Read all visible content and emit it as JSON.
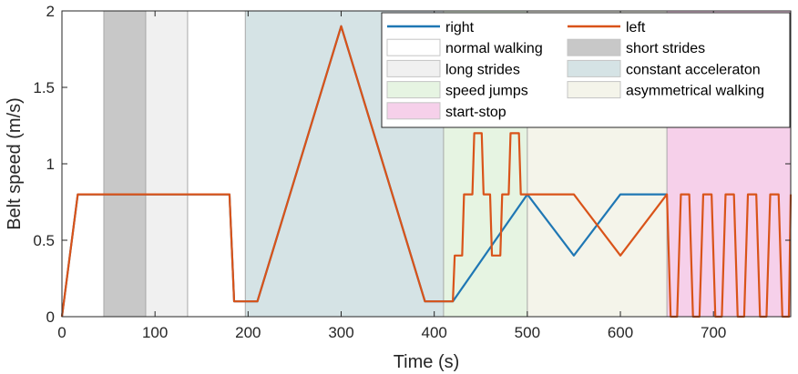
{
  "chart_data": {
    "type": "line",
    "xlabel": "Time (s)",
    "ylabel": "Belt speed (m/s)",
    "xlim": [
      0,
      783
    ],
    "ylim": [
      0,
      2
    ],
    "xticks": [
      0,
      100,
      200,
      300,
      400,
      500,
      600,
      700
    ],
    "yticks": [
      0,
      0.5,
      1,
      1.5,
      2
    ],
    "ytick_labels": [
      "0",
      "0.5",
      "1",
      "1.5",
      "2"
    ],
    "grid": false,
    "legend_position": "top-right",
    "phases": [
      {
        "name": "normal walking",
        "color": "#ffffff",
        "ranges": [
          [
            0,
            45
          ],
          [
            135,
            197
          ]
        ]
      },
      {
        "name": "short strides",
        "color": "#c8c8c8",
        "ranges": [
          [
            45,
            90
          ]
        ]
      },
      {
        "name": "long strides",
        "color": "#f0f0f0",
        "ranges": [
          [
            90,
            135
          ]
        ]
      },
      {
        "name": "constant acceleraton",
        "color": "#d5e3e5",
        "ranges": [
          [
            197,
            410
          ]
        ]
      },
      {
        "name": "speed jumps",
        "color": "#e6f4e2",
        "ranges": [
          [
            410,
            500
          ]
        ]
      },
      {
        "name": "asymmetrical walking",
        "color": "#f4f4ea",
        "ranges": [
          [
            500,
            650
          ]
        ]
      },
      {
        "name": "start-stop",
        "color": "#f6d0ea",
        "ranges": [
          [
            650,
            783
          ]
        ]
      }
    ],
    "series": [
      {
        "name": "right",
        "color": "#1f77b4",
        "x": [
          0,
          17,
          180,
          185,
          210,
          300,
          390,
          420,
          500,
          550,
          600,
          650
        ],
        "y": [
          0,
          0.8,
          0.8,
          0.1,
          0.1,
          1.9,
          0.1,
          0.1,
          0.8,
          0.4,
          0.8,
          0.8
        ]
      },
      {
        "name": "left",
        "color": "#d95319",
        "x": [
          0,
          17,
          180,
          185,
          210,
          300,
          390,
          420,
          422,
          430,
          432,
          441,
          443,
          451,
          453,
          460,
          462,
          471,
          473,
          480,
          482,
          491,
          493,
          500,
          550,
          600,
          650,
          654,
          661,
          665,
          674,
          678,
          685,
          689,
          698,
          702,
          709,
          713,
          722,
          726,
          733,
          737,
          746,
          750,
          757,
          761,
          770,
          774,
          781,
          783
        ],
        "y": [
          0,
          0.8,
          0.8,
          0.1,
          0.1,
          1.9,
          0.1,
          0.1,
          0.4,
          0.4,
          0.8,
          0.8,
          1.2,
          1.2,
          0.8,
          0.8,
          0.4,
          0.4,
          0.8,
          0.8,
          1.2,
          1.2,
          0.8,
          0.8,
          0.8,
          0.4,
          0.8,
          0,
          0,
          0.8,
          0.8,
          0,
          0,
          0.8,
          0.8,
          0,
          0,
          0.8,
          0.8,
          0,
          0,
          0.8,
          0.8,
          0,
          0,
          0.8,
          0.8,
          0,
          0,
          0.8
        ]
      }
    ],
    "legend": [
      {
        "label": "right",
        "kind": "line",
        "color": "#1f77b4"
      },
      {
        "label": "left",
        "kind": "line",
        "color": "#d95319"
      },
      {
        "label": "normal walking",
        "kind": "patch",
        "color": "#ffffff"
      },
      {
        "label": "short strides",
        "kind": "patch",
        "color": "#c8c8c8"
      },
      {
        "label": "long strides",
        "kind": "patch",
        "color": "#f0f0f0"
      },
      {
        "label": "constant acceleraton",
        "kind": "patch",
        "color": "#d5e3e5"
      },
      {
        "label": "speed jumps",
        "kind": "patch",
        "color": "#e6f4e2"
      },
      {
        "label": "asymmetrical walking",
        "kind": "patch",
        "color": "#f4f4ea"
      },
      {
        "label": "start-stop",
        "kind": "patch",
        "color": "#f6d0ea"
      }
    ]
  }
}
